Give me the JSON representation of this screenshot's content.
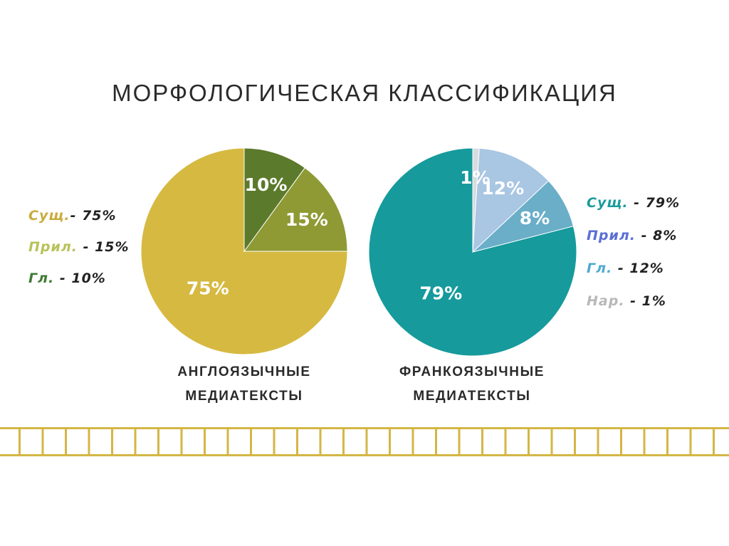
{
  "title": "МОРФОЛОГИЧЕСКАЯ КЛАССИФИКАЦИЯ",
  "chart_data": [
    {
      "type": "pie",
      "caption": [
        "АНГЛОЯЗЫЧНЫЕ",
        "МЕДИАТЕКСТЫ"
      ],
      "slices": [
        {
          "label": "Сущ.",
          "value": 75,
          "display": "75%",
          "color": "#d6b941"
        },
        {
          "label": "Прил.",
          "value": 15,
          "display": "15%",
          "color": "#8f9a35"
        },
        {
          "label": "Гл.",
          "value": 10,
          "display": "10%",
          "color": "#5b7a2b"
        }
      ],
      "legend": [
        {
          "name": "Сущ.",
          "value": "- 75%",
          "color": "#c9ab3c"
        },
        {
          "name": "Прил.",
          "value": " - 15%",
          "color": "#b8c25a"
        },
        {
          "name": "Гл.",
          "value": " - 10%",
          "color": "#3f7a33"
        }
      ]
    },
    {
      "type": "pie",
      "caption": [
        "ФРАНКОЯЗЫЧНЫЕ",
        "МЕДИАТЕКСТЫ"
      ],
      "slices": [
        {
          "label": "Сущ.",
          "value": 79,
          "display": "79%",
          "color": "#169a9c"
        },
        {
          "label": "Прил.",
          "value": 8,
          "display": "8%",
          "color": "#6aaec8"
        },
        {
          "label": "Гл.",
          "value": 12,
          "display": "12%",
          "color": "#a9c6e2"
        },
        {
          "label": "Нар.",
          "value": 1,
          "display": "1%",
          "color": "#d9dcdf"
        }
      ],
      "legend": [
        {
          "name": "Сущ.",
          "value": " - 79%",
          "color": "#1a9b9c"
        },
        {
          "name": "Прил.",
          "value": " - 8%",
          "color": "#5a6fd6"
        },
        {
          "name": "Гл.",
          "value": " - 12%",
          "color": "#4eaad0"
        },
        {
          "name": "Нар.",
          "value": " - 1%",
          "color": "#b8b8b8"
        }
      ]
    }
  ],
  "colors": {
    "grid": "#d4b646",
    "title": "#2b2b2b"
  }
}
